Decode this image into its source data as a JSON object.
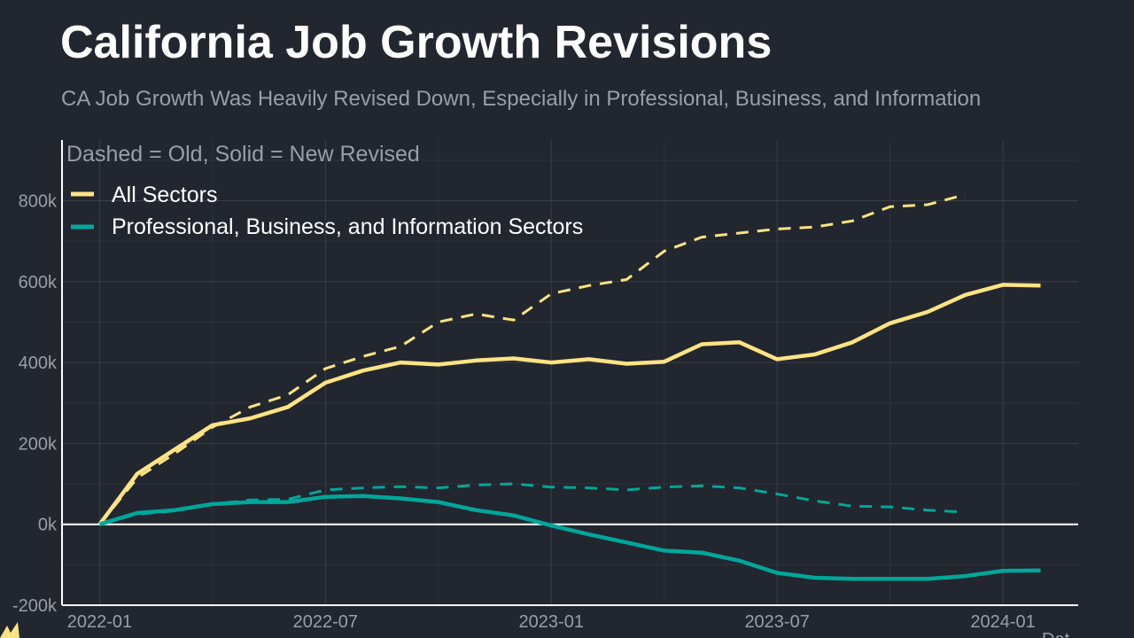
{
  "title": "California Job Growth Revisions",
  "subtitle": "CA Job Growth Was Heavily Revised Down, Especially in Professional, Business, and Information",
  "footer_partial": "Dat",
  "chart_data": {
    "type": "line",
    "title": "California Job Growth Revisions",
    "subtitle": "CA Job Growth Was Heavily Revised Down, Especially in Professional, Business, and Information",
    "legend_title": "Dashed = Old, Solid = New Revised",
    "legend_position": "top-left",
    "grid": true,
    "xlabel": "",
    "ylabel": "",
    "x_ticks": [
      "2022-01",
      "2022-07",
      "2023-01",
      "2023-07",
      "2024-01"
    ],
    "y_ticks": [
      "-200k",
      "0k",
      "200k",
      "400k",
      "600k",
      "800k"
    ],
    "y_tick_values": [
      -200000,
      0,
      200000,
      400000,
      600000,
      800000
    ],
    "ylim": [
      -200000,
      950000
    ],
    "xlim": [
      "2021-12",
      "2024-03"
    ],
    "colors": {
      "all_sectors": "#fde383",
      "professional": "#00a79a",
      "zero_line": "#ffffff",
      "background": "#22262f",
      "grid": "#3a3e48"
    },
    "series": [
      {
        "name": "All Sectors",
        "style": "solid",
        "color": "#fde383",
        "start": "2022-01",
        "values": [
          0,
          125000,
          185000,
          245000,
          262000,
          290000,
          350000,
          380000,
          400000,
          395000,
          405000,
          410000,
          400000,
          408000,
          397000,
          402000,
          445000,
          450000,
          408000,
          420000,
          450000,
          497000,
          525000,
          567000,
          592000,
          590000
        ]
      },
      {
        "name": "All Sectors",
        "style": "dashed",
        "color": "#fde383",
        "start": "2022-01",
        "values": [
          0,
          115000,
          175000,
          240000,
          290000,
          320000,
          385000,
          415000,
          440000,
          500000,
          520000,
          505000,
          570000,
          590000,
          605000,
          675000,
          710000,
          720000,
          730000,
          735000,
          750000,
          785000,
          790000,
          815000
        ]
      },
      {
        "name": "Professional, Business, and Information Sectors",
        "style": "solid",
        "color": "#00a79a",
        "start": "2022-01",
        "values": [
          0,
          28000,
          35000,
          50000,
          55000,
          55000,
          68000,
          70000,
          64000,
          55000,
          35000,
          22000,
          -3000,
          -25000,
          -45000,
          -65000,
          -70000,
          -90000,
          -120000,
          -132000,
          -135000,
          -135000,
          -135000,
          -128000,
          -115000,
          -114000
        ]
      },
      {
        "name": "Professional, Business, and Information Sectors",
        "style": "dashed",
        "color": "#00a79a",
        "start": "2022-01",
        "values": [
          0,
          25000,
          33000,
          50000,
          60000,
          62000,
          85000,
          90000,
          93000,
          90000,
          97000,
          100000,
          92000,
          90000,
          85000,
          92000,
          95000,
          90000,
          75000,
          58000,
          45000,
          43000,
          35000,
          30000
        ]
      }
    ],
    "legend": [
      "All Sectors",
      "Professional, Business, and Information Sectors"
    ]
  }
}
